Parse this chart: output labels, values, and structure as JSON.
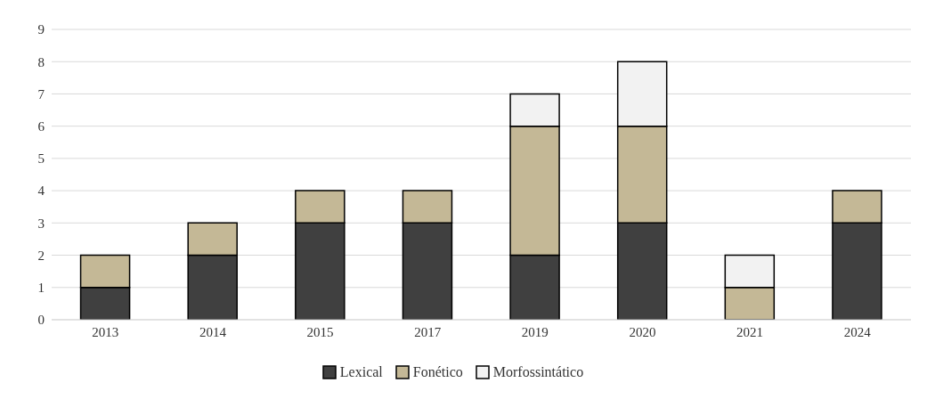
{
  "chart_data": {
    "type": "bar",
    "stacked": true,
    "categories": [
      "2013",
      "2014",
      "2015",
      "2017",
      "2019",
      "2020",
      "2021",
      "2024"
    ],
    "series": [
      {
        "name": "Lexical",
        "color": "#404040",
        "values": [
          1,
          2,
          3,
          3,
          2,
          3,
          0,
          3
        ]
      },
      {
        "name": "Fonético",
        "color": "#c4b896",
        "values": [
          1,
          1,
          1,
          1,
          4,
          3,
          1,
          1
        ]
      },
      {
        "name": "Morfossintático",
        "color": "#f2f2f2",
        "values": [
          0,
          0,
          0,
          0,
          1,
          2,
          1,
          0
        ]
      }
    ],
    "ylim": [
      0,
      9
    ],
    "yticks": [
      0,
      1,
      2,
      3,
      4,
      5,
      6,
      7,
      8,
      9
    ],
    "grid": "y",
    "legend": "bottom"
  }
}
